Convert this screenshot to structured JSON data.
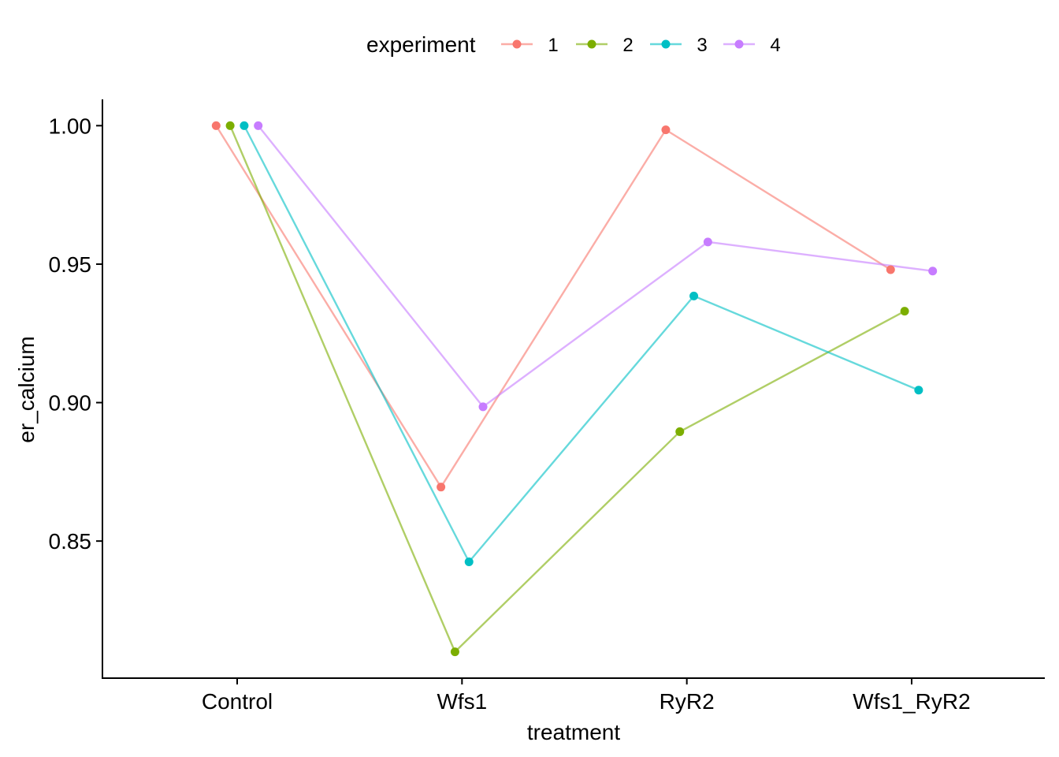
{
  "chart_data": {
    "type": "line",
    "xlabel": "treatment",
    "ylabel": "er_calcium",
    "categories": [
      "Control",
      "Wfs1",
      "RyR2",
      "Wfs1_RyR2"
    ],
    "y_ticks": [
      0.85,
      0.9,
      0.95,
      1.0
    ],
    "y_tick_labels": [
      "0.85",
      "0.90",
      "0.95",
      "1.00"
    ],
    "ylim": [
      0.8005,
      1.0095
    ],
    "grid": false,
    "legend": {
      "title": "experiment",
      "placement": "top"
    },
    "series": [
      {
        "name": "1",
        "color": "#F8766D",
        "values": [
          1.0,
          0.8695,
          0.9985,
          0.948
        ]
      },
      {
        "name": "2",
        "color": "#7CAE00",
        "values": [
          1.0,
          0.81,
          0.8895,
          0.933
        ]
      },
      {
        "name": "3",
        "color": "#00BFC4",
        "values": [
          1.0,
          0.8425,
          0.9385,
          0.9045
        ]
      },
      {
        "name": "4",
        "color": "#C77CFF",
        "values": [
          1.0,
          0.8985,
          0.958,
          0.9475
        ]
      }
    ]
  }
}
